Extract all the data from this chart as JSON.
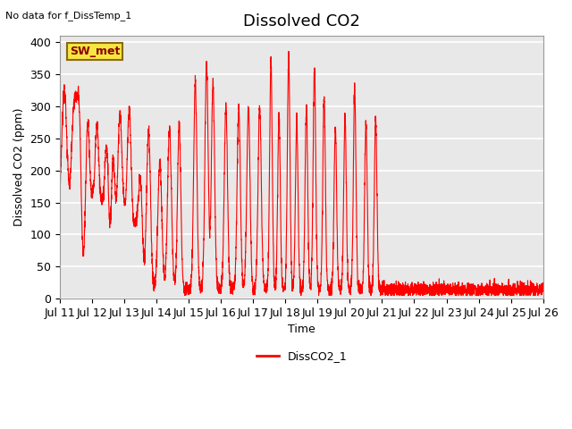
{
  "title": "Dissolved CO2",
  "top_left_text": "No data for f_DissTemp_1",
  "xlabel": "Time",
  "ylabel": "Dissolved CO2 (ppm)",
  "ylim": [
    0,
    410
  ],
  "yticks": [
    0,
    50,
    100,
    150,
    200,
    250,
    300,
    350,
    400
  ],
  "xtick_labels": [
    "Jul 11",
    "Jul 12",
    "Jul 13",
    "Jul 14",
    "Jul 15",
    "Jul 16",
    "Jul 17",
    "Jul 18",
    "Jul 19",
    "Jul 20",
    "Jul 21",
    "Jul 22",
    "Jul 23",
    "Jul 24",
    "Jul 25",
    "Jul 26"
  ],
  "line_color": "red",
  "legend_label": "DissCO2_1",
  "annotation_label": "SW_met",
  "annotation_bg": "#f5e642",
  "annotation_border": "#8B6914",
  "annotation_text_color": "#8B0000",
  "bg_color": "#e8e8e8",
  "grid_color": "white",
  "title_fontsize": 13,
  "axis_fontsize": 9,
  "tick_fontsize": 9,
  "peak_amps": [
    210,
    185,
    175,
    215,
    195,
    205,
    200,
    225,
    210,
    125,
    250,
    200,
    248,
    258,
    325,
    352,
    322,
    285,
    282,
    285,
    285,
    360,
    270,
    365,
    270,
    285,
    345,
    300,
    253,
    270,
    313,
    260,
    265
  ],
  "peak_positions": [
    0.15,
    0.45,
    0.6,
    0.85,
    1.15,
    1.45,
    1.65,
    1.85,
    2.15,
    2.5,
    2.75,
    3.1,
    3.4,
    3.7,
    4.2,
    4.55,
    4.75,
    5.15,
    5.55,
    5.85,
    6.2,
    6.55,
    6.8,
    7.1,
    7.35,
    7.65,
    7.9,
    8.2,
    8.55,
    8.85,
    9.15,
    9.5,
    9.8
  ],
  "peak_widths": [
    0.08,
    0.07,
    0.06,
    0.06,
    0.06,
    0.06,
    0.06,
    0.07,
    0.06,
    0.06,
    0.06,
    0.06,
    0.06,
    0.05,
    0.05,
    0.05,
    0.05,
    0.05,
    0.05,
    0.05,
    0.05,
    0.04,
    0.04,
    0.04,
    0.04,
    0.04,
    0.04,
    0.04,
    0.04,
    0.04,
    0.04,
    0.04,
    0.04
  ],
  "n_days": 15
}
